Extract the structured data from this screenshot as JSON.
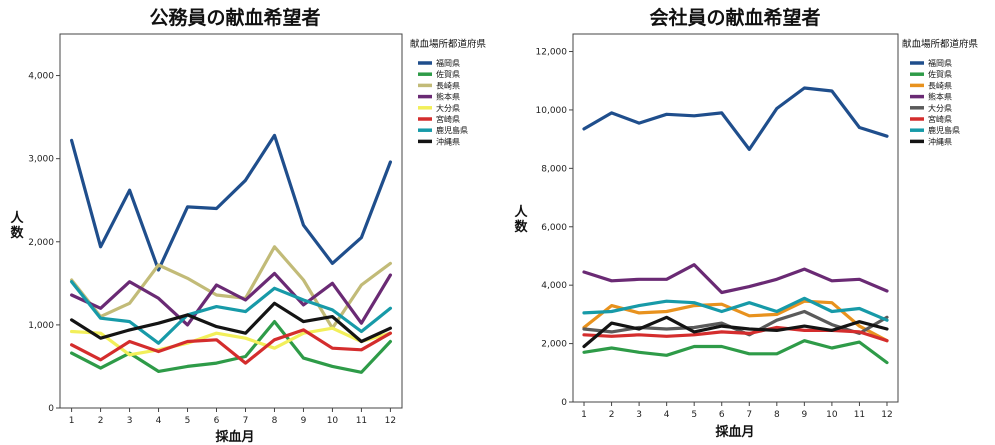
{
  "chart_data": [
    {
      "type": "line",
      "title": "公務員の献血希望者",
      "xlabel": "採血月",
      "ylabel": "人数",
      "x": [
        1,
        2,
        3,
        4,
        5,
        6,
        7,
        8,
        9,
        10,
        11,
        12
      ],
      "xlim": [
        0.6,
        12.4
      ],
      "ylim": [
        0,
        4500
      ],
      "yticks": [
        0,
        1000,
        2000,
        3000,
        4000
      ],
      "ytick_labels": [
        "0",
        "1,000",
        "2,000",
        "3,000",
        "4,000"
      ],
      "legend_title": "献血場所都道府県",
      "legend_position": "right",
      "grid": false,
      "series": [
        {
          "name": "福岡県",
          "color": "#1f4e8c",
          "values": [
            3220,
            1940,
            2620,
            1660,
            2420,
            2400,
            2740,
            3280,
            2200,
            1740,
            2050,
            2960
          ]
        },
        {
          "name": "佐賀県",
          "color": "#2e9b48",
          "values": [
            660,
            480,
            660,
            440,
            500,
            540,
            620,
            1040,
            600,
            500,
            430,
            800
          ]
        },
        {
          "name": "長崎県",
          "color": "#c2bb78",
          "values": [
            1540,
            1100,
            1260,
            1720,
            1560,
            1360,
            1320,
            1940,
            1540,
            960,
            1480,
            1740
          ]
        },
        {
          "name": "熊本県",
          "color": "#6a2a74",
          "values": [
            1360,
            1200,
            1520,
            1320,
            1000,
            1480,
            1300,
            1620,
            1240,
            1500,
            1020,
            1600
          ]
        },
        {
          "name": "大分県",
          "color": "#f2ef5a",
          "values": [
            920,
            900,
            640,
            700,
            780,
            900,
            840,
            720,
            900,
            960,
            800,
            900
          ]
        },
        {
          "name": "宮崎県",
          "color": "#d42d2d",
          "values": [
            760,
            580,
            800,
            680,
            800,
            820,
            540,
            820,
            940,
            720,
            700,
            900
          ]
        },
        {
          "name": "鹿児島県",
          "color": "#179aa8",
          "values": [
            1520,
            1080,
            1040,
            780,
            1120,
            1220,
            1160,
            1440,
            1300,
            1180,
            920,
            1200
          ]
        },
        {
          "name": "沖縄県",
          "color": "#141414",
          "values": [
            1060,
            840,
            940,
            1020,
            1120,
            980,
            900,
            1260,
            1040,
            1100,
            800,
            960
          ]
        }
      ]
    },
    {
      "type": "line",
      "title": "会社員の献血希望者",
      "xlabel": "採血月",
      "ylabel": "人数",
      "x": [
        1,
        2,
        3,
        4,
        5,
        6,
        7,
        8,
        9,
        10,
        11,
        12
      ],
      "xlim": [
        0.6,
        12.4
      ],
      "ylim": [
        0,
        12600
      ],
      "yticks": [
        0,
        2000,
        4000,
        6000,
        8000,
        10000,
        12000
      ],
      "ytick_labels": [
        "0",
        "2,000",
        "4,000",
        "6,000",
        "8,000",
        "10,000",
        "12,000"
      ],
      "legend_title": "献血場所都道府県",
      "legend_position": "right",
      "grid": false,
      "series": [
        {
          "name": "福岡県",
          "color": "#1f4e8c",
          "values": [
            9350,
            9900,
            9550,
            9850,
            9800,
            9900,
            8650,
            10050,
            10750,
            10650,
            9400,
            9100
          ]
        },
        {
          "name": "佐賀県",
          "color": "#2e9b48",
          "values": [
            1700,
            1850,
            1700,
            1600,
            1900,
            1900,
            1650,
            1650,
            2100,
            1850,
            2050,
            1350
          ]
        },
        {
          "name": "長崎県",
          "color": "#e8921e",
          "values": [
            2550,
            3300,
            3050,
            3100,
            3300,
            3350,
            2950,
            3000,
            3450,
            3400,
            2600,
            2100
          ]
        },
        {
          "name": "熊本県",
          "color": "#6a2a74",
          "values": [
            4450,
            4150,
            4200,
            4200,
            4700,
            3750,
            3950,
            4200,
            4550,
            4150,
            4200,
            3800
          ]
        },
        {
          "name": "大分県",
          "color": "#5a5a5a",
          "values": [
            2500,
            2400,
            2550,
            2500,
            2550,
            2700,
            2300,
            2800,
            3100,
            2650,
            2350,
            2900
          ]
        },
        {
          "name": "宮崎県",
          "color": "#d42d2d",
          "values": [
            2300,
            2250,
            2300,
            2250,
            2300,
            2400,
            2350,
            2550,
            2450,
            2450,
            2400,
            2100
          ]
        },
        {
          "name": "鹿児島県",
          "color": "#179aa8",
          "values": [
            3050,
            3100,
            3300,
            3450,
            3400,
            3100,
            3400,
            3100,
            3550,
            3100,
            3200,
            2800
          ]
        },
        {
          "name": "沖縄県",
          "color": "#141414",
          "values": [
            1900,
            2700,
            2500,
            2900,
            2400,
            2600,
            2500,
            2450,
            2600,
            2450,
            2750,
            2500
          ]
        }
      ]
    }
  ]
}
